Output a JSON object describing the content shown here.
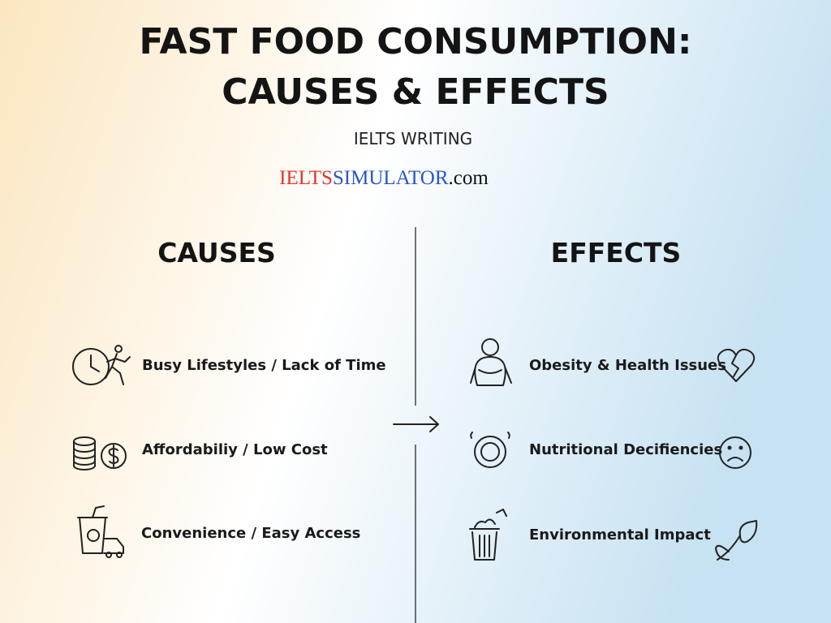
{
  "header": {
    "title_lines": [
      "FAST FOOD CONSUMPTION:",
      "CAUSES & EFFECTS"
    ],
    "subtitle": "IELTS WRITING",
    "brand": {
      "part1": "IELTS",
      "part2": "SIMULATOR",
      "part3": ".com"
    }
  },
  "causes": {
    "heading": "CAUSES",
    "items": [
      "Busy Lifestyles / Lack of Time",
      "Affordabiliy / Low Cost",
      "Convenience / Easy Access"
    ]
  },
  "effects": {
    "heading": "EFFECTS",
    "items": [
      "Obesity & Health Issues",
      "Nutritional Decifiencies",
      "Environmental Impact"
    ]
  }
}
